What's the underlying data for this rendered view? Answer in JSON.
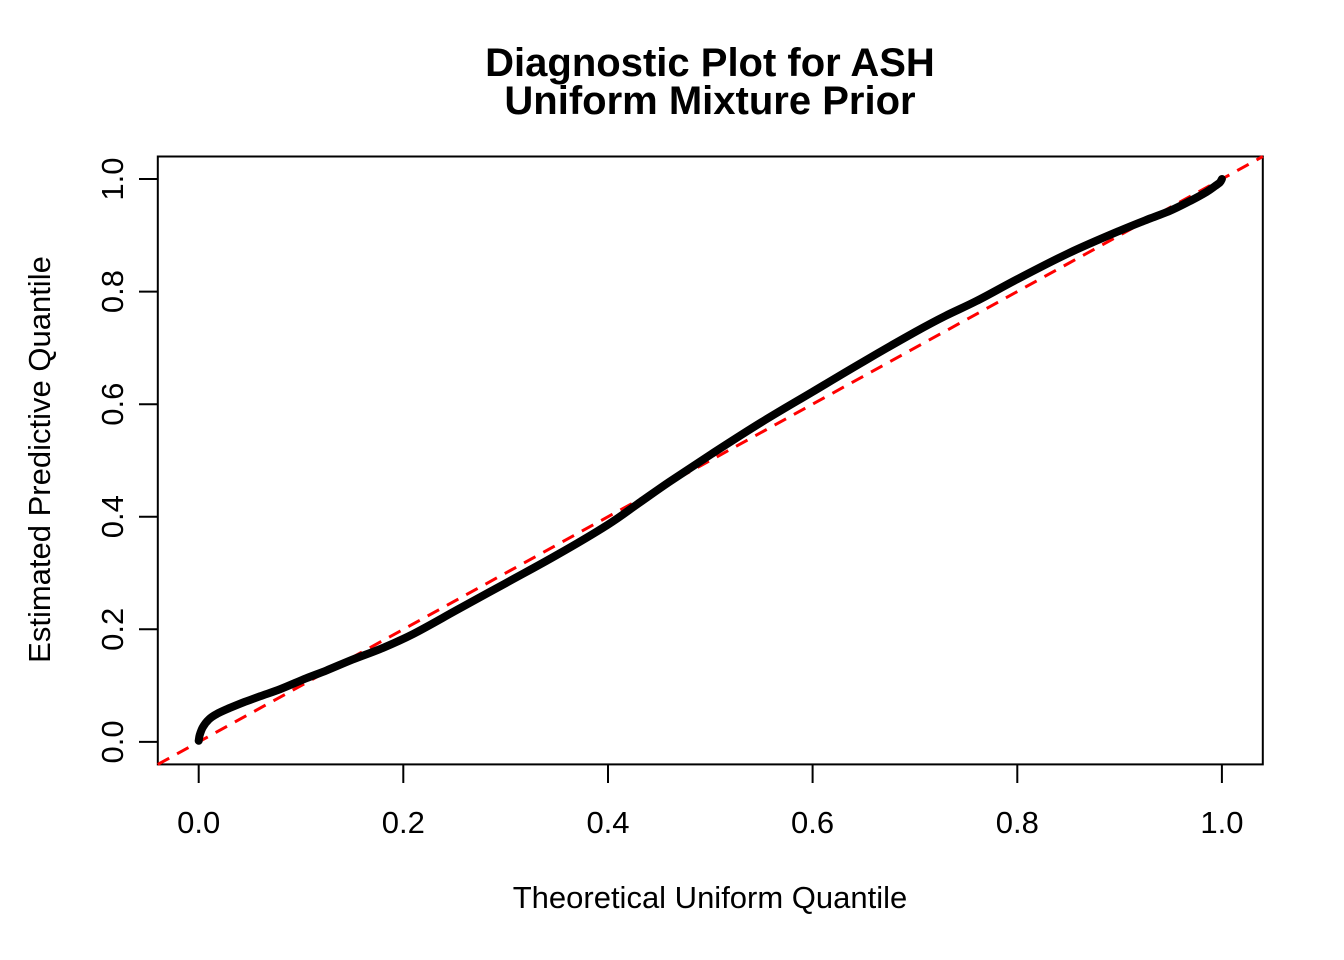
{
  "page": {
    "background_color": "#FFFFFF",
    "foreground_color": "#000000",
    "accent_color": "#FF0000"
  },
  "chart_data": {
    "type": "line",
    "title_line1": "Diagnostic Plot for ASH",
    "title_line2": "Uniform Mixture Prior",
    "xlabel": "Theoretical Uniform Quantile",
    "ylabel": "Estimated Predictive Quantile",
    "xlim": [
      -0.04,
      1.04
    ],
    "ylim": [
      -0.04,
      1.04
    ],
    "grid": false,
    "legend": "none",
    "x_ticks": {
      "values": [
        0.0,
        0.2,
        0.4,
        0.6,
        0.8,
        1.0
      ],
      "labels": [
        "0.0",
        "0.2",
        "0.4",
        "0.6",
        "0.8",
        "1.0"
      ]
    },
    "y_ticks": {
      "values": [
        0.0,
        0.2,
        0.4,
        0.6,
        0.8,
        1.0
      ],
      "labels": [
        "0.0",
        "0.2",
        "0.4",
        "0.6",
        "0.8",
        "1.0"
      ]
    },
    "series": [
      {
        "name": "estimated-predictive-quantiles",
        "style": "thick-point-curve",
        "color": "#000000",
        "stroke_width": 8,
        "points": [
          [
            0.0,
            0.002
          ],
          [
            0.001,
            0.012
          ],
          [
            0.004,
            0.026
          ],
          [
            0.01,
            0.04
          ],
          [
            0.018,
            0.05
          ],
          [
            0.03,
            0.06
          ],
          [
            0.045,
            0.071
          ],
          [
            0.06,
            0.081
          ],
          [
            0.08,
            0.094
          ],
          [
            0.105,
            0.113
          ],
          [
            0.125,
            0.127
          ],
          [
            0.15,
            0.146
          ],
          [
            0.18,
            0.167
          ],
          [
            0.21,
            0.192
          ],
          [
            0.25,
            0.232
          ],
          [
            0.3,
            0.282
          ],
          [
            0.35,
            0.332
          ],
          [
            0.4,
            0.386
          ],
          [
            0.43,
            0.424
          ],
          [
            0.46,
            0.462
          ],
          [
            0.5,
            0.51
          ],
          [
            0.55,
            0.568
          ],
          [
            0.6,
            0.622
          ],
          [
            0.65,
            0.676
          ],
          [
            0.7,
            0.728
          ],
          [
            0.73,
            0.757
          ],
          [
            0.76,
            0.783
          ],
          [
            0.8,
            0.822
          ],
          [
            0.85,
            0.868
          ],
          [
            0.9,
            0.908
          ],
          [
            0.93,
            0.93
          ],
          [
            0.95,
            0.944
          ],
          [
            0.97,
            0.962
          ],
          [
            0.985,
            0.977
          ],
          [
            0.993,
            0.987
          ],
          [
            0.998,
            0.994
          ],
          [
            1.0,
            1.0
          ]
        ]
      },
      {
        "name": "reference-line-y-equals-x",
        "style": "dashed",
        "color": "#FF0000",
        "stroke_width": 3,
        "dash": "13 9",
        "points": [
          [
            -0.04,
            -0.04
          ],
          [
            1.04,
            1.04
          ]
        ]
      }
    ]
  }
}
